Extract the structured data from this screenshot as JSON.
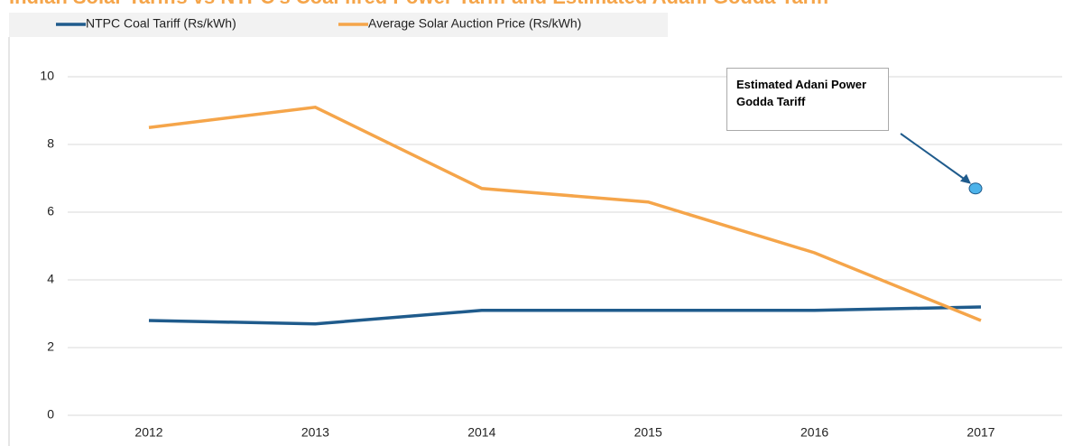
{
  "chart_data": {
    "type": "line",
    "title": "Indian Solar Tariffs vs NTPC's Coal fired Power Tariff and Estimated Adani Godda Tariff",
    "categories": [
      "2012",
      "2013",
      "2014",
      "2015",
      "2016",
      "2017"
    ],
    "series": [
      {
        "name": "NTPC Coal Tariff (Rs/kWh)",
        "color": "#1f5b8c",
        "values": [
          2.8,
          2.7,
          3.1,
          3.1,
          3.1,
          3.2
        ]
      },
      {
        "name": "Average Solar Auction Price (Rs/kWh)",
        "color": "#f5a54a",
        "values": [
          8.5,
          9.1,
          6.7,
          6.3,
          4.8,
          2.8
        ]
      }
    ],
    "annotation": {
      "text": "Estimated Adani Power Godda Tariff",
      "category": "2017",
      "value": 6.7,
      "color": "#4db3ea"
    },
    "ylim": [
      0,
      10
    ],
    "yticks": [
      0,
      2,
      4,
      6,
      8,
      10
    ],
    "grid": true
  }
}
